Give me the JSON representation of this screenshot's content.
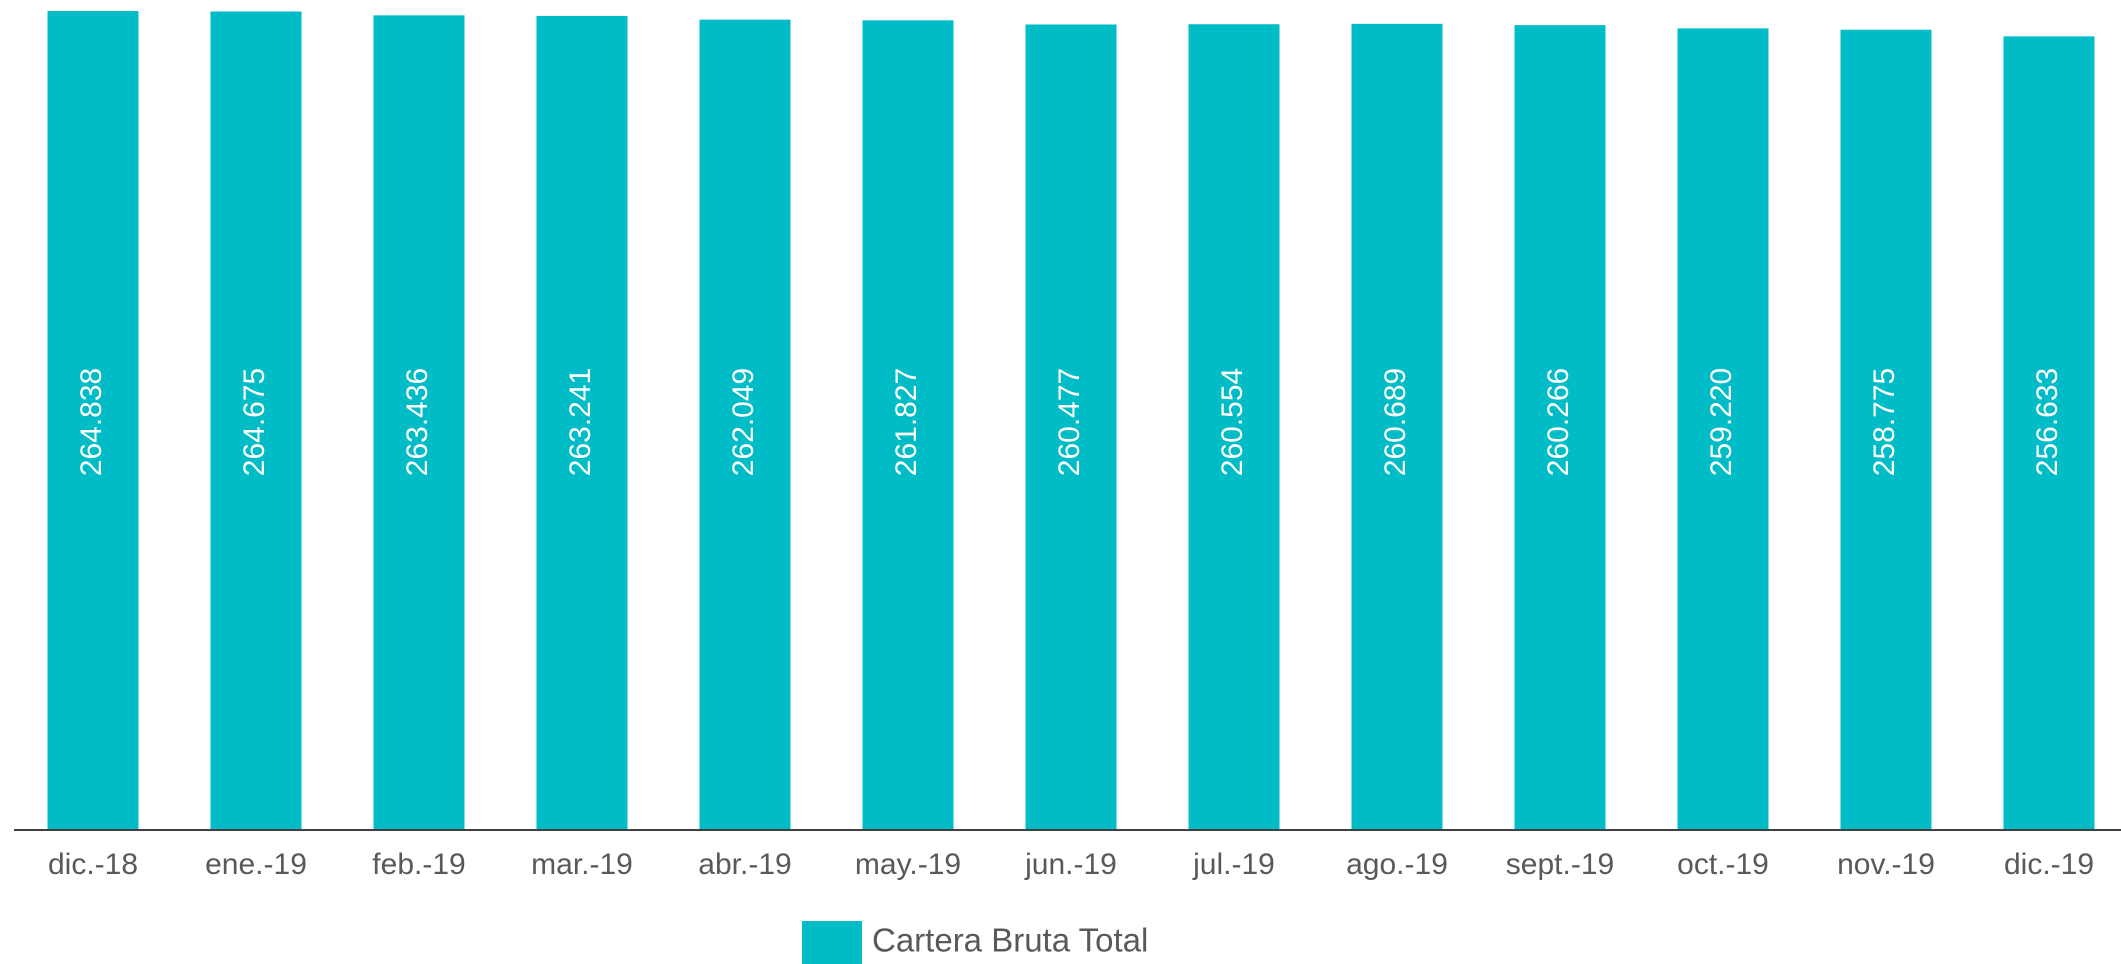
{
  "chart_data": {
    "type": "bar",
    "categories": [
      "dic.-18",
      "ene.-19",
      "feb.-19",
      "mar.-19",
      "abr.-19",
      "may.-19",
      "jun.-19",
      "jul.-19",
      "ago.-19",
      "sept.-19",
      "oct.-19",
      "nov.-19",
      "dic.-19"
    ],
    "series": [
      {
        "name": "Cartera Bruta Total",
        "color": "#00bcc6",
        "values": [
          264838,
          264675,
          263436,
          263241,
          262049,
          261827,
          260477,
          260554,
          260689,
          260266,
          259220,
          258775,
          256633
        ],
        "value_labels": [
          "264.838",
          "264.675",
          "263.436",
          "263.241",
          "262.049",
          "261.827",
          "260.477",
          "260.554",
          "260.689",
          "260.266",
          "259.220",
          "258.775",
          "256.633"
        ]
      }
    ],
    "legend": "bottom"
  }
}
